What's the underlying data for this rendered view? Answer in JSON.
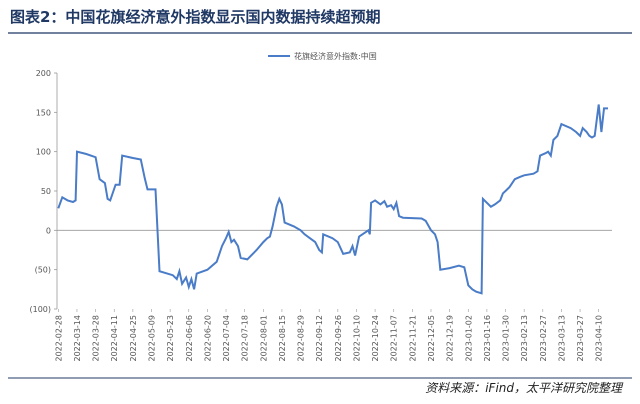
{
  "title": "图表2：中国花旗经济意外指数显示国内数据持续超预期",
  "source": "资料来源：iFind，太平洋研究院整理",
  "chart_data": {
    "type": "line",
    "x": [
      "2022-02-28",
      "2022-03-03",
      "2022-03-07",
      "2022-03-11",
      "2022-03-13",
      "2022-03-14",
      "2022-03-21",
      "2022-03-28",
      "2022-03-31",
      "2022-04-04",
      "2022-04-06",
      "2022-04-08",
      "2022-04-12",
      "2022-04-15",
      "2022-04-17",
      "2022-04-25",
      "2022-05-01",
      "2022-05-04",
      "2022-05-06",
      "2022-05-12",
      "2022-05-15",
      "2022-05-25",
      "2022-05-28",
      "2022-05-30",
      "2022-06-01",
      "2022-06-04",
      "2022-06-06",
      "2022-06-08",
      "2022-06-10",
      "2022-06-12",
      "2022-06-20",
      "2022-06-27",
      "2022-07-01",
      "2022-07-04",
      "2022-07-06",
      "2022-07-08",
      "2022-07-10",
      "2022-07-13",
      "2022-07-15",
      "2022-07-20",
      "2022-07-27",
      "2022-08-01",
      "2022-08-04",
      "2022-08-06",
      "2022-08-08",
      "2022-08-11",
      "2022-08-13",
      "2022-08-15",
      "2022-08-17",
      "2022-08-24",
      "2022-08-29",
      "2022-09-01",
      "2022-09-05",
      "2022-09-09",
      "2022-09-12",
      "2022-09-14",
      "2022-09-15",
      "2022-09-22",
      "2022-09-26",
      "2022-09-30",
      "2022-10-05",
      "2022-10-07",
      "2022-10-09",
      "2022-10-12",
      "2022-10-19",
      "2022-10-20",
      "2022-10-21",
      "2022-10-24",
      "2022-10-28",
      "2022-10-31",
      "2022-11-02",
      "2022-11-05",
      "2022-11-07",
      "2022-11-09",
      "2022-11-11",
      "2022-11-14",
      "2022-11-28",
      "2022-12-01",
      "2022-12-05",
      "2022-12-08",
      "2022-12-10",
      "2022-12-12",
      "2022-12-19",
      "2022-12-26",
      "2022-12-30",
      "2023-01-02",
      "2023-01-05",
      "2023-01-08",
      "2023-01-12",
      "2023-01-13",
      "2023-01-16",
      "2023-01-19",
      "2023-01-22",
      "2023-01-26",
      "2023-01-28",
      "2023-01-30",
      "2023-02-02",
      "2023-02-04",
      "2023-02-06",
      "2023-02-10",
      "2023-02-13",
      "2023-02-20",
      "2023-02-23",
      "2023-02-25",
      "2023-03-01",
      "2023-03-03",
      "2023-03-05",
      "2023-03-07",
      "2023-03-10",
      "2023-03-13",
      "2023-03-20",
      "2023-03-24",
      "2023-03-27",
      "2023-03-29",
      "2023-04-01",
      "2023-04-03",
      "2023-04-05",
      "2023-04-07",
      "2023-04-10",
      "2023-04-12",
      "2023-04-14",
      "2023-04-17"
    ],
    "series": [
      {
        "name": "花旗经济意外指数:中国",
        "color": "#4a7cc7",
        "values": [
          28,
          42,
          38,
          36,
          38,
          100,
          97,
          93,
          65,
          60,
          40,
          38,
          58,
          58,
          95,
          92,
          90,
          66,
          52,
          52,
          -52,
          -57,
          -62,
          -52,
          -68,
          -60,
          -72,
          -62,
          -75,
          -55,
          -50,
          -40,
          -20,
          -10,
          -2,
          -15,
          -12,
          -20,
          -35,
          -37,
          -25,
          -15,
          -10,
          -8,
          5,
          30,
          40,
          33,
          10,
          5,
          0,
          -5,
          -10,
          -15,
          -25,
          -28,
          -5,
          -10,
          -15,
          -30,
          -28,
          -20,
          -32,
          -8,
          0,
          -5,
          35,
          38,
          33,
          37,
          30,
          32,
          27,
          35,
          18,
          16,
          15,
          12,
          0,
          -5,
          -15,
          -50,
          -48,
          -45,
          -47,
          -70,
          -75,
          -78,
          -80,
          40,
          35,
          30,
          33,
          38,
          47,
          50,
          55,
          60,
          65,
          68,
          70,
          72,
          75,
          95,
          98,
          100,
          95,
          115,
          120,
          135,
          130,
          125,
          120,
          130,
          125,
          120,
          118,
          120,
          160,
          125,
          155,
          155
        ]
      }
    ],
    "xlim": [
      "2022-02-27",
      "2023-04-20"
    ],
    "xticks": [
      "2022-02-28",
      "2022-03-14",
      "2022-03-28",
      "2022-04-11",
      "2022-04-25",
      "2022-05-09",
      "2022-05-23",
      "2022-06-06",
      "2022-06-20",
      "2022-07-04",
      "2022-07-18",
      "2022-08-01",
      "2022-08-15",
      "2022-08-29",
      "2022-09-12",
      "2022-09-26",
      "2022-10-10",
      "2022-10-24",
      "2022-11-07",
      "2022-11-21",
      "2022-12-05",
      "2022-12-19",
      "2023-01-02",
      "2023-01-16",
      "2023-01-30",
      "2023-02-13",
      "2023-02-27",
      "2023-03-13",
      "2023-03-27",
      "2023-04-10"
    ],
    "ylim": [
      -100,
      200
    ],
    "yticks": [
      {
        "value": -100,
        "label": "(100)"
      },
      {
        "value": -50,
        "label": "(50)"
      },
      0,
      50,
      100,
      150,
      200
    ],
    "legend": "top"
  }
}
